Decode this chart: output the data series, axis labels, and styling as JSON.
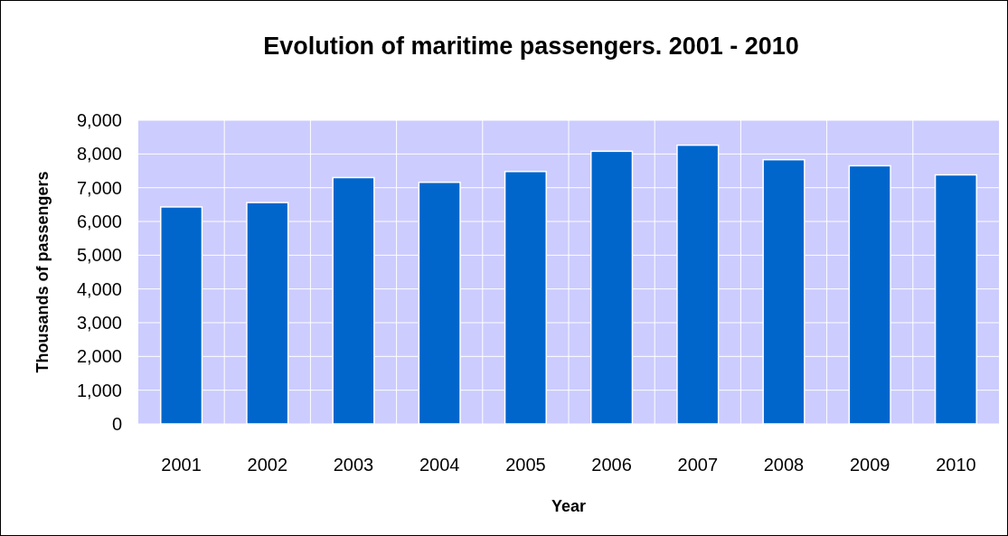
{
  "chart_data": {
    "type": "bar",
    "title": "Evolution of maritime passengers. 2001 - 2010",
    "xlabel": "Year",
    "ylabel": "Thousands of passengers",
    "categories": [
      "2001",
      "2002",
      "2003",
      "2004",
      "2005",
      "2006",
      "2007",
      "2008",
      "2009",
      "2010"
    ],
    "values": [
      6430,
      6560,
      7300,
      7160,
      7480,
      8080,
      8260,
      7830,
      7650,
      7380
    ],
    "color": "#0066cc",
    "ylim": [
      0,
      9000
    ],
    "yticks": [
      {
        "value": 0,
        "label": "0"
      },
      {
        "value": 1000,
        "label": "1,000"
      },
      {
        "value": 2000,
        "label": "2,000"
      },
      {
        "value": 3000,
        "label": "3,000"
      },
      {
        "value": 4000,
        "label": "4,000"
      },
      {
        "value": 5000,
        "label": "5,000"
      },
      {
        "value": 6000,
        "label": "6,000"
      },
      {
        "value": 7000,
        "label": "7,000"
      },
      {
        "value": 8000,
        "label": "8,000"
      },
      {
        "value": 9000,
        "label": "9,000"
      }
    ],
    "grid": true
  }
}
